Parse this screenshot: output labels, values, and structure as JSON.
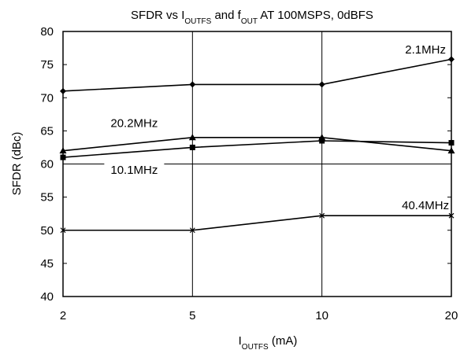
{
  "chart_data": {
    "type": "line",
    "title": {
      "prefix": "SFDR vs I",
      "sub1": "OUTFS",
      "mid": " and f",
      "sub2": "OUT",
      "suffix": " AT 100MSPS, 0dBFS"
    },
    "xlabel": {
      "main": "I",
      "sub": "OUTFS",
      "suffix": " (mA)"
    },
    "ylabel": "SFDR (dBc)",
    "x_scale": "categorical",
    "categories": [
      "2",
      "5",
      "10",
      "20"
    ],
    "ylim": [
      40,
      80
    ],
    "y_ticks": [
      "40",
      "45",
      "50",
      "55",
      "60",
      "65",
      "70",
      "75",
      "80"
    ],
    "grid": "vertical lines at categories; horizontal line at 60",
    "colors": {
      "line": "#000000",
      "background": "#ffffff"
    },
    "series": [
      {
        "name": "2.1MHz",
        "marker": "diamond",
        "values": [
          71,
          72,
          72,
          75.8
        ]
      },
      {
        "name": "20.2MHz",
        "marker": "triangle",
        "values": [
          62,
          64,
          64,
          62
        ]
      },
      {
        "name": "10.1MHz",
        "marker": "square",
        "values": [
          61,
          62.5,
          63.5,
          63.2
        ]
      },
      {
        "name": "40.4MHz",
        "marker": "x",
        "values": [
          50,
          50,
          52.2,
          52.2
        ]
      }
    ]
  }
}
